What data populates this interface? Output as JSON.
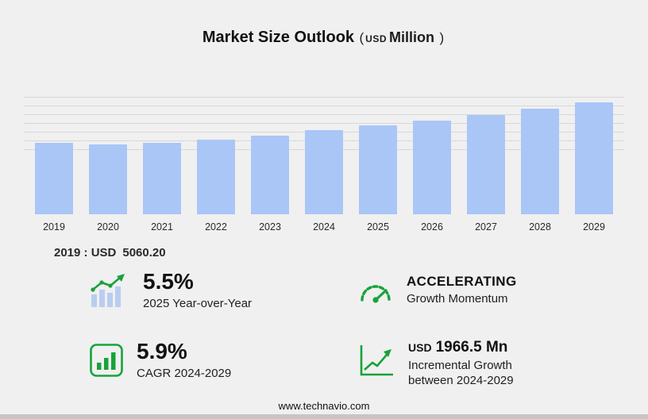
{
  "title": {
    "main": "Market Size Outlook",
    "open_paren": "(",
    "currency": "USD",
    "unit": "Million",
    "close_paren": ")"
  },
  "chart_data": {
    "type": "bar",
    "title": "Market Size Outlook (USD Million)",
    "categories": [
      "2019",
      "2020",
      "2021",
      "2022",
      "2023",
      "2024",
      "2025",
      "2026",
      "2027",
      "2028",
      "2029"
    ],
    "values": [
      5060.2,
      4920,
      5055,
      5280,
      5560,
      5923,
      6249,
      6600,
      6980,
      7420,
      7889.5
    ],
    "xlabel": "",
    "ylabel": "",
    "ylim": [
      0,
      8400
    ],
    "y_axis_labels": "hidden",
    "grid": "horizontal-upper-region",
    "gridline_count": 7,
    "bar_color": "#a9c6f7",
    "values_note": "2019 labeled 5060.20; other values estimated from bar heights consistent with 5.5% YoY 2025, 5.9% CAGR 2024-2029, incremental 1966.5"
  },
  "baseline": {
    "label": "2019 : USD",
    "value": "5060.20"
  },
  "stats": [
    {
      "icon": "growth-bars-icon",
      "value": "5.5%",
      "line1": "2025 Year-over-Year"
    },
    {
      "icon": "speedometer-icon",
      "value": "ACCELERATING",
      "line1": "Growth Momentum"
    },
    {
      "icon": "cagr-box-icon",
      "value": "5.9%",
      "line1": "CAGR 2024-2029"
    },
    {
      "icon": "incremental-growth-icon",
      "value_currency": "USD",
      "value": "1966.5 Mn",
      "line1": "Incremental Growth",
      "line2": "between 2024-2029"
    }
  ],
  "footer": {
    "url": "www.technavio.com"
  },
  "colors": {
    "accent_green": "#18a23b",
    "bar_blue": "#a9c6f7",
    "background": "#f0f0f0",
    "gridline": "#d7d7d7"
  }
}
